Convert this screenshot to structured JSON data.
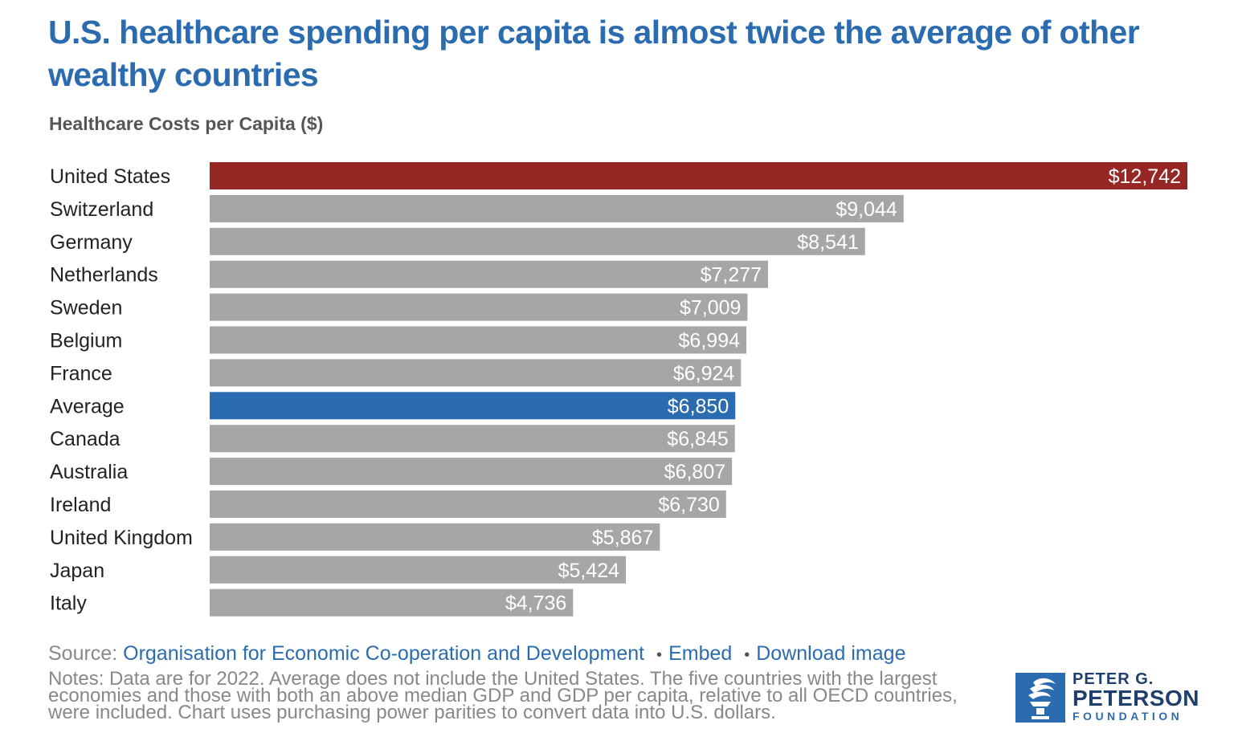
{
  "title": "U.S. healthcare spending per capita is almost twice the average of other wealthy countries",
  "subtitle": "Healthcare Costs per Capita ($)",
  "colors": {
    "highlight": "#962725",
    "average": "#2b6cb0",
    "default": "#a6a6a6",
    "label_text": "#ffffff",
    "category_text": "#222222"
  },
  "chart_data": {
    "type": "bar",
    "orientation": "horizontal",
    "title": "U.S. healthcare spending per capita is almost twice the average of other wealthy countries",
    "subtitle": "Healthcare Costs per Capita ($)",
    "categories": [
      "United States",
      "Switzerland",
      "Germany",
      "Netherlands",
      "Sweden",
      "Belgium",
      "France",
      "Average",
      "Canada",
      "Australia",
      "Ireland",
      "United Kingdom",
      "Japan",
      "Italy"
    ],
    "values": [
      12742,
      9044,
      8541,
      7277,
      7009,
      6994,
      6924,
      6850,
      6845,
      6807,
      6730,
      5867,
      5424,
      4736
    ],
    "data_labels": [
      "$12,742",
      "$9,044",
      "$8,541",
      "$7,277",
      "$7,009",
      "$6,994",
      "$6,924",
      "$6,850",
      "$6,845",
      "$6,807",
      "$6,730",
      "$5,867",
      "$5,424",
      "$4,736"
    ],
    "highlight": {
      "United States": "#962725",
      "Average": "#2b6cb0"
    },
    "xlim": [
      0,
      12742
    ],
    "grid": false,
    "legend": "none"
  },
  "footer": {
    "source_label": "Source:",
    "source_link": "Organisation for Economic Co-operation and Development",
    "embed": "Embed",
    "download": "Download image",
    "separator": "•",
    "notes": "Notes: Data are for 2022. Average does not include the United States. The five countries with the largest economies and those with both an above median GDP and GDP per capita, relative to all OECD countries, were included. Chart uses purchasing power parities to convert data into U.S. dollars."
  },
  "logo": {
    "line1": "PETER G.",
    "line2": "PETERSON",
    "line3": "FOUNDATION",
    "icon": "torch-icon"
  }
}
